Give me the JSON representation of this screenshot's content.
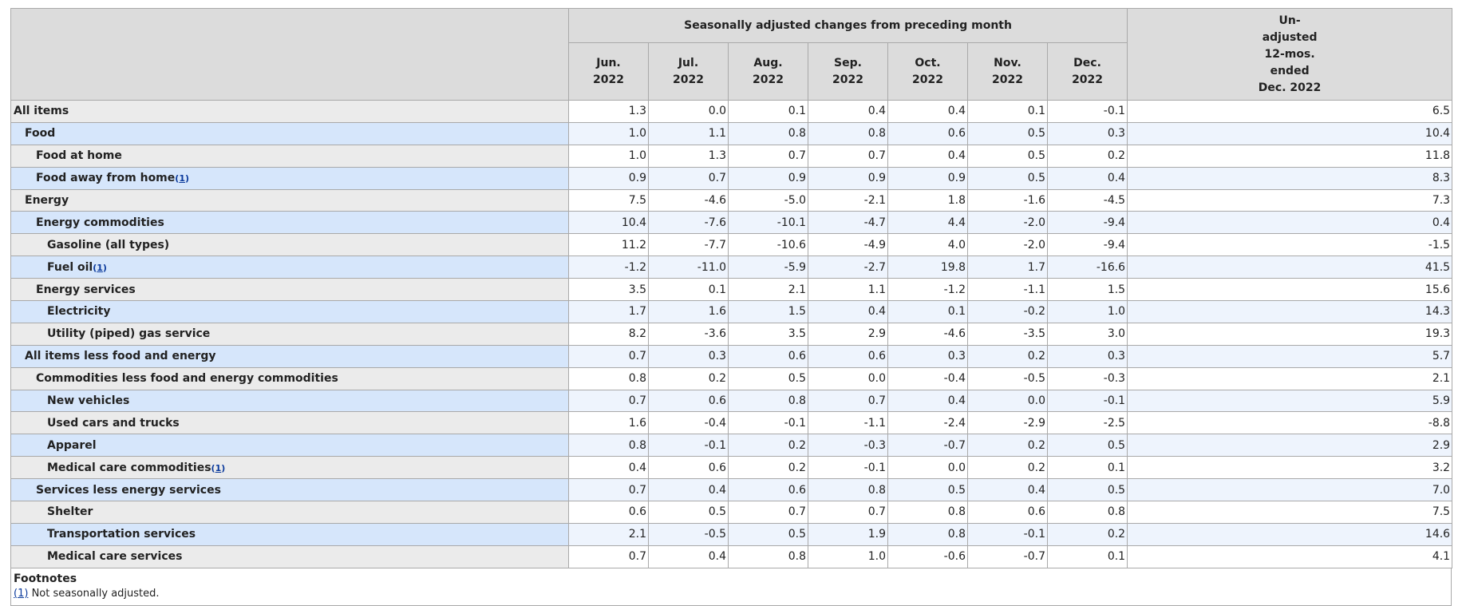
{
  "header": {
    "group_label": "Seasonally adjusted changes from preceding month",
    "months": [
      {
        "m": "Jun.",
        "y": "2022"
      },
      {
        "m": "Jul.",
        "y": "2022"
      },
      {
        "m": "Aug.",
        "y": "2022"
      },
      {
        "m": "Sep.",
        "y": "2022"
      },
      {
        "m": "Oct.",
        "y": "2022"
      },
      {
        "m": "Nov.",
        "y": "2022"
      },
      {
        "m": "Dec.",
        "y": "2022"
      }
    ],
    "unadjusted": [
      "Un-",
      "adjusted",
      "12-mos.",
      "ended",
      "Dec. 2022"
    ]
  },
  "rows": [
    {
      "label": "All items",
      "indent": 0,
      "fn": "",
      "values": [
        "1.3",
        "0.0",
        "0.1",
        "0.4",
        "0.4",
        "0.1",
        "-0.1",
        "6.5"
      ]
    },
    {
      "label": "Food",
      "indent": 1,
      "fn": "",
      "values": [
        "1.0",
        "1.1",
        "0.8",
        "0.8",
        "0.6",
        "0.5",
        "0.3",
        "10.4"
      ]
    },
    {
      "label": "Food at home",
      "indent": 2,
      "fn": "",
      "values": [
        "1.0",
        "1.3",
        "0.7",
        "0.7",
        "0.4",
        "0.5",
        "0.2",
        "11.8"
      ]
    },
    {
      "label": "Food away from home",
      "indent": 2,
      "fn": "1",
      "values": [
        "0.9",
        "0.7",
        "0.9",
        "0.9",
        "0.9",
        "0.5",
        "0.4",
        "8.3"
      ]
    },
    {
      "label": "Energy",
      "indent": 1,
      "fn": "",
      "values": [
        "7.5",
        "-4.6",
        "-5.0",
        "-2.1",
        "1.8",
        "-1.6",
        "-4.5",
        "7.3"
      ]
    },
    {
      "label": "Energy commodities",
      "indent": 2,
      "fn": "",
      "values": [
        "10.4",
        "-7.6",
        "-10.1",
        "-4.7",
        "4.4",
        "-2.0",
        "-9.4",
        "0.4"
      ]
    },
    {
      "label": "Gasoline (all types)",
      "indent": 3,
      "fn": "",
      "values": [
        "11.2",
        "-7.7",
        "-10.6",
        "-4.9",
        "4.0",
        "-2.0",
        "-9.4",
        "-1.5"
      ]
    },
    {
      "label": "Fuel oil",
      "indent": 3,
      "fn": "1",
      "values": [
        "-1.2",
        "-11.0",
        "-5.9",
        "-2.7",
        "19.8",
        "1.7",
        "-16.6",
        "41.5"
      ]
    },
    {
      "label": "Energy services",
      "indent": 2,
      "fn": "",
      "values": [
        "3.5",
        "0.1",
        "2.1",
        "1.1",
        "-1.2",
        "-1.1",
        "1.5",
        "15.6"
      ]
    },
    {
      "label": "Electricity",
      "indent": 3,
      "fn": "",
      "values": [
        "1.7",
        "1.6",
        "1.5",
        "0.4",
        "0.1",
        "-0.2",
        "1.0",
        "14.3"
      ]
    },
    {
      "label": "Utility (piped) gas service",
      "indent": 3,
      "fn": "",
      "values": [
        "8.2",
        "-3.6",
        "3.5",
        "2.9",
        "-4.6",
        "-3.5",
        "3.0",
        "19.3"
      ]
    },
    {
      "label": "All items less food and energy",
      "indent": 1,
      "fn": "",
      "values": [
        "0.7",
        "0.3",
        "0.6",
        "0.6",
        "0.3",
        "0.2",
        "0.3",
        "5.7"
      ]
    },
    {
      "label": "Commodities less food and energy commodities",
      "indent": 2,
      "fn": "",
      "values": [
        "0.8",
        "0.2",
        "0.5",
        "0.0",
        "-0.4",
        "-0.5",
        "-0.3",
        "2.1"
      ]
    },
    {
      "label": "New vehicles",
      "indent": 3,
      "fn": "",
      "values": [
        "0.7",
        "0.6",
        "0.8",
        "0.7",
        "0.4",
        "0.0",
        "-0.1",
        "5.9"
      ]
    },
    {
      "label": "Used cars and trucks",
      "indent": 3,
      "fn": "",
      "values": [
        "1.6",
        "-0.4",
        "-0.1",
        "-1.1",
        "-2.4",
        "-2.9",
        "-2.5",
        "-8.8"
      ]
    },
    {
      "label": "Apparel",
      "indent": 3,
      "fn": "",
      "values": [
        "0.8",
        "-0.1",
        "0.2",
        "-0.3",
        "-0.7",
        "0.2",
        "0.5",
        "2.9"
      ]
    },
    {
      "label": "Medical care commodities",
      "indent": 3,
      "fn": "1",
      "values": [
        "0.4",
        "0.6",
        "0.2",
        "-0.1",
        "0.0",
        "0.2",
        "0.1",
        "3.2"
      ]
    },
    {
      "label": "Services less energy services",
      "indent": 2,
      "fn": "",
      "values": [
        "0.7",
        "0.4",
        "0.6",
        "0.8",
        "0.5",
        "0.4",
        "0.5",
        "7.0"
      ]
    },
    {
      "label": "Shelter",
      "indent": 3,
      "fn": "",
      "values": [
        "0.6",
        "0.5",
        "0.7",
        "0.7",
        "0.8",
        "0.6",
        "0.8",
        "7.5"
      ]
    },
    {
      "label": "Transportation services",
      "indent": 3,
      "fn": "",
      "values": [
        "2.1",
        "-0.5",
        "0.5",
        "1.9",
        "0.8",
        "-0.1",
        "0.2",
        "14.6"
      ]
    },
    {
      "label": "Medical care services",
      "indent": 3,
      "fn": "",
      "values": [
        "0.7",
        "0.4",
        "0.8",
        "1.0",
        "-0.6",
        "-0.7",
        "0.1",
        "4.1"
      ]
    }
  ],
  "footnotes": {
    "title": "Footnotes",
    "items": [
      {
        "ref": "(1)",
        "text": "Not seasonally adjusted."
      }
    ]
  }
}
